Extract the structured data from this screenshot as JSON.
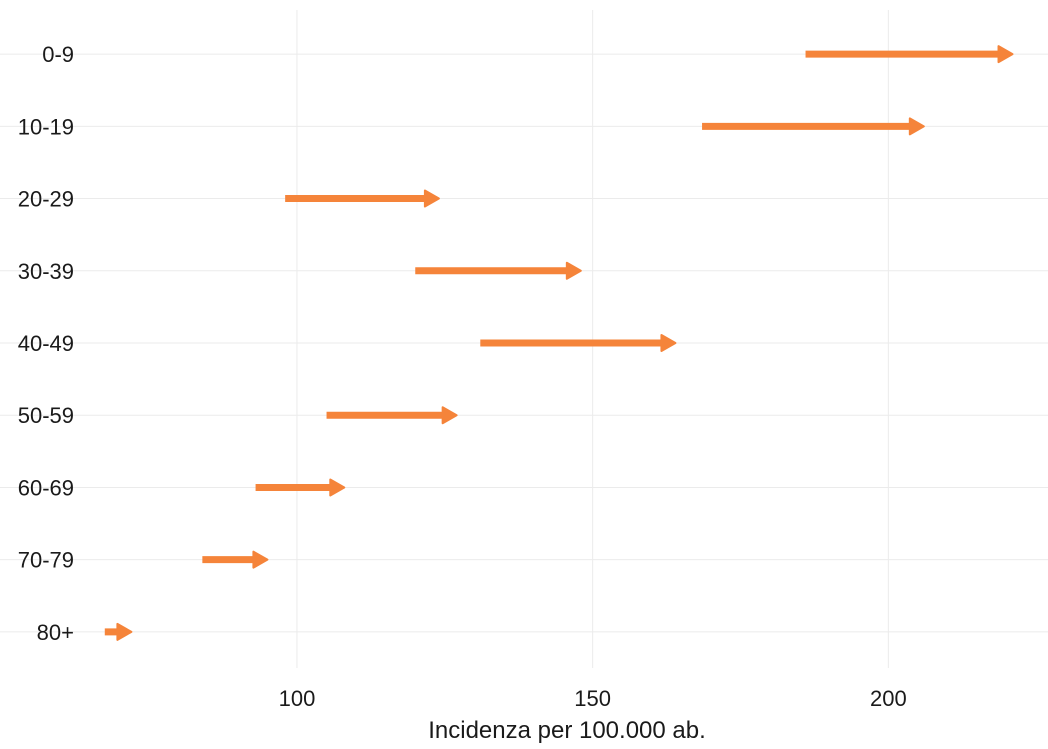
{
  "chart_data": {
    "type": "arrow",
    "title": "",
    "xlabel": "Incidenza per 100.000 ab.",
    "ylabel": "",
    "xlim": [
      65,
      227
    ],
    "xticks": [
      100,
      150,
      200
    ],
    "grid": true,
    "legend": "none",
    "color": "#F5843A",
    "categories": [
      "0-9",
      "10-19",
      "20-29",
      "30-39",
      "40-49",
      "50-59",
      "60-69",
      "70-79",
      "80+"
    ],
    "series": [
      {
        "start": [
          186,
          168.5,
          98,
          120,
          131,
          105,
          93,
          84,
          67.5
        ],
        "end": [
          221,
          206,
          124,
          148,
          164,
          127,
          108,
          95,
          72
        ]
      }
    ]
  }
}
